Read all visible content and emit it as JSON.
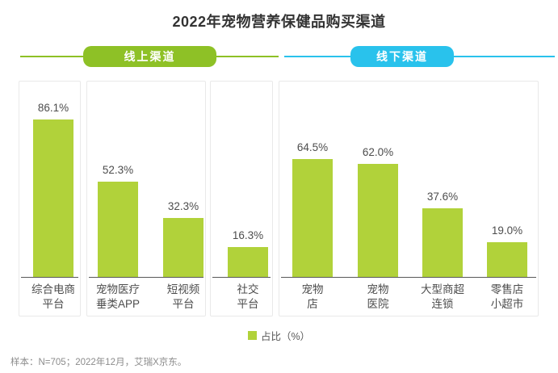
{
  "title": "2022年宠物营养保健品购买渠道",
  "channel_groups": {
    "online": {
      "label": "线上渠道",
      "color": "#8ec126"
    },
    "offline": {
      "label": "线下渠道",
      "color": "#29c2ec"
    }
  },
  "chart_data": {
    "type": "bar",
    "title": "2022年宠物营养保健品购买渠道",
    "series_name": "占比（%）",
    "categories": [
      "综合电商平台",
      "宠物医疗垂类APP",
      "短视频平台",
      "社交平台",
      "宠物店",
      "宠物医院",
      "大型商超连锁",
      "零售店小超市"
    ],
    "category_lines": [
      [
        "综合电商",
        "平台"
      ],
      [
        "宠物医疗",
        "垂类APP"
      ],
      [
        "短视频",
        "平台"
      ],
      [
        "社交",
        "平台"
      ],
      [
        "宠物",
        "店"
      ],
      [
        "宠物",
        "医院"
      ],
      [
        "大型商超",
        "连锁"
      ],
      [
        "零售店",
        "小超市"
      ]
    ],
    "values": [
      86.1,
      52.3,
      32.3,
      16.3,
      64.5,
      62.0,
      37.6,
      19.0
    ],
    "value_labels": [
      "86.1%",
      "52.3%",
      "32.3%",
      "16.3%",
      "64.5%",
      "62.0%",
      "37.6%",
      "19.0%"
    ],
    "group_of_category": [
      "online",
      "online",
      "online",
      "online",
      "offline",
      "offline",
      "offline",
      "offline"
    ],
    "bar_color": "#b1d23a",
    "ylim": [
      0,
      100
    ],
    "grid": false,
    "legend_position": "bottom"
  },
  "legend": {
    "label": "占比（%）",
    "swatch_color": "#b1d23a"
  },
  "footer": {
    "text": "样本：N=705；2022年12月，艾瑞X京东。"
  }
}
